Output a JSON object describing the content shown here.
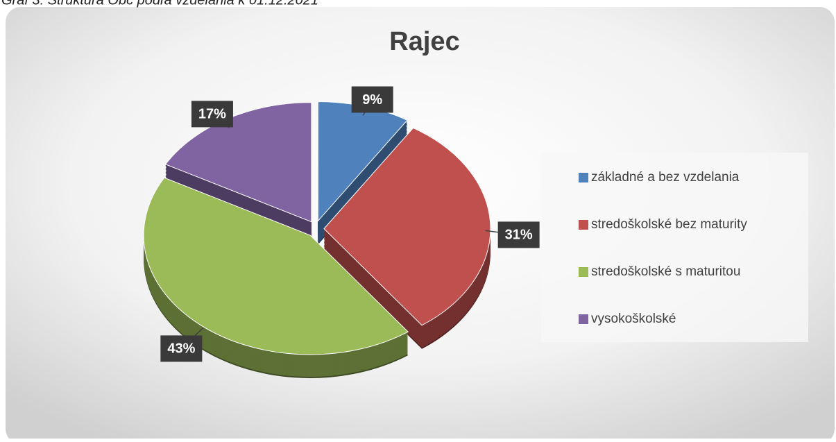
{
  "caption": "Graf 3: Štruktúra Obč podľa vzdelania k 01.12.2021",
  "chart_data": {
    "type": "pie",
    "title": "Rajec",
    "categories": [
      "základné a bez vzdelania",
      "stredoškolské bez maturity",
      "stredoškolské s maturitou",
      "vysokoškolské"
    ],
    "values": [
      9,
      31,
      43,
      17
    ],
    "value_labels": [
      "9%",
      "31%",
      "43%",
      "17%"
    ],
    "colors": [
      "#4f81bd",
      "#c0504d",
      "#9bbb59",
      "#8064a2"
    ],
    "legend": "right"
  }
}
